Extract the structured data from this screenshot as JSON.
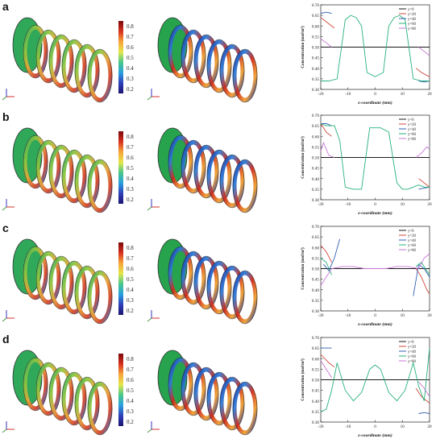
{
  "panels": [
    {
      "letter": "a",
      "colorbar_ticks": [
        "0.8",
        "0.7",
        "0.6",
        "0.5",
        "0.4",
        "0.3",
        "0.2"
      ]
    },
    {
      "letter": "b",
      "colorbar_ticks": [
        "0.8",
        "0.7",
        "0.6",
        "0.5",
        "0.4",
        "0.3",
        "0.2"
      ]
    },
    {
      "letter": "c",
      "colorbar_ticks": [
        "0.8",
        "0.7",
        "0.6",
        "0.5",
        "0.4",
        "0.3",
        "0.2"
      ]
    },
    {
      "letter": "d",
      "colorbar_ticks": [
        "0.8",
        "0.7",
        "0.6",
        "0.5",
        "0.4",
        "0.3",
        "0.2"
      ]
    }
  ],
  "colors": {
    "y0": "#1a1a1a",
    "y20": "#d0473b",
    "y40": "#2f5fb0",
    "y60": "#27b07a",
    "y80": "#c774d6"
  },
  "chart_data": [
    {
      "type": "line",
      "xlabel": "z-coordinate (mm)",
      "ylabel": "Concentration (mol/m³)",
      "xlim": [
        -20,
        20
      ],
      "ylim": [
        0.3,
        0.7
      ],
      "xticks": [
        -20,
        -10,
        0,
        10,
        20
      ],
      "yticks": [
        0.3,
        0.35,
        0.4,
        0.45,
        0.5,
        0.55,
        0.6,
        0.65,
        0.7
      ],
      "legend_position": "top-right",
      "series": [
        {
          "name": "y=0",
          "color": "#1a1a1a",
          "x": [
            -20,
            20
          ],
          "y": [
            0.5,
            0.5
          ]
        },
        {
          "name": "y=20",
          "color": "#d0473b",
          "x": [
            -20,
            -17,
            -15,
            15,
            17,
            20
          ],
          "y": [
            0.64,
            0.61,
            0.59,
            0.4,
            0.38,
            0.36
          ]
        },
        {
          "name": "y=40",
          "color": "#2f5fb0",
          "x": [
            -20,
            -18,
            -16,
            16,
            18,
            20
          ],
          "y": [
            0.66,
            0.665,
            0.66,
            0.34,
            0.335,
            0.34
          ]
        },
        {
          "name": "y=60",
          "color": "#27b07a",
          "x": [
            -20,
            -17,
            -14,
            -11,
            -9,
            -7,
            -5,
            -3,
            0,
            3,
            5,
            7,
            9,
            11,
            14,
            17,
            20
          ],
          "y": [
            0.34,
            0.34,
            0.35,
            0.63,
            0.65,
            0.64,
            0.6,
            0.38,
            0.36,
            0.38,
            0.6,
            0.64,
            0.65,
            0.63,
            0.35,
            0.34,
            0.34
          ]
        },
        {
          "name": "y=80",
          "color": "#c774d6",
          "x": [
            -20,
            -18,
            -16,
            16,
            18,
            20
          ],
          "y": [
            0.54,
            0.52,
            0.5,
            0.5,
            0.48,
            0.46
          ]
        }
      ]
    },
    {
      "type": "line",
      "xlabel": "z-coordinate (mm)",
      "ylabel": "Concentration (mol/m³)",
      "xlim": [
        -20,
        20
      ],
      "ylim": [
        0.3,
        0.7
      ],
      "xticks": [
        -20,
        -10,
        0,
        10,
        20
      ],
      "yticks": [
        0.3,
        0.35,
        0.4,
        0.45,
        0.5,
        0.55,
        0.6,
        0.65,
        0.7
      ],
      "legend_position": "top-right",
      "series": [
        {
          "name": "y=0",
          "color": "#1a1a1a",
          "x": [
            -20,
            20
          ],
          "y": [
            0.5,
            0.5
          ]
        },
        {
          "name": "y=20",
          "color": "#d0473b",
          "x": [
            -20,
            -18,
            -16,
            16,
            18,
            20
          ],
          "y": [
            0.66,
            0.62,
            0.6,
            0.4,
            0.38,
            0.36
          ]
        },
        {
          "name": "y=40",
          "color": "#2f5fb0",
          "x": [
            -20,
            -18,
            -16,
            16,
            18,
            20
          ],
          "y": [
            0.66,
            0.66,
            0.65,
            0.35,
            0.355,
            0.36
          ]
        },
        {
          "name": "y=60",
          "color": "#27b07a",
          "x": [
            -20,
            -18,
            -15,
            -13,
            -11,
            -8,
            -5,
            -2,
            2,
            5,
            8,
            10,
            12,
            14,
            16,
            18,
            20
          ],
          "y": [
            0.66,
            0.65,
            0.65,
            0.58,
            0.36,
            0.35,
            0.35,
            0.64,
            0.64,
            0.62,
            0.38,
            0.35,
            0.35,
            0.36,
            0.37,
            0.36,
            0.36
          ]
        },
        {
          "name": "y=80",
          "color": "#c774d6",
          "x": [
            -20,
            -19,
            -17,
            -15,
            15,
            17,
            19,
            20
          ],
          "y": [
            0.53,
            0.57,
            0.51,
            0.5,
            0.5,
            0.52,
            0.55,
            0.54
          ]
        }
      ]
    },
    {
      "type": "line",
      "xlabel": "z-coordinate (mm)",
      "ylabel": "Concentration (mol/m³)",
      "xlim": [
        -20,
        20
      ],
      "ylim": [
        0.3,
        0.7
      ],
      "xticks": [
        -20,
        -10,
        0,
        10,
        20
      ],
      "yticks": [
        0.3,
        0.35,
        0.4,
        0.45,
        0.5,
        0.55,
        0.6,
        0.65,
        0.7
      ],
      "legend_position": "top-right",
      "series": [
        {
          "name": "y=0",
          "color": "#1a1a1a",
          "x": [
            -20,
            20
          ],
          "y": [
            0.5,
            0.5
          ]
        },
        {
          "name": "y=20",
          "color": "#d0473b",
          "x": [
            -20,
            -18,
            -16,
            15,
            17,
            19,
            20
          ],
          "y": [
            0.61,
            0.58,
            0.53,
            0.5,
            0.46,
            0.4,
            0.38
          ]
        },
        {
          "name": "y=40",
          "color": "#2f5fb0",
          "x": [
            -19,
            -17,
            -15,
            -13,
            14,
            16,
            18,
            20
          ],
          "y": [
            0.52,
            0.49,
            0.55,
            0.64,
            0.37,
            0.52,
            0.5,
            0.46
          ]
        },
        {
          "name": "y=60",
          "color": "#27b07a",
          "x": [
            -20,
            -18,
            -16,
            15,
            17,
            19,
            20
          ],
          "y": [
            0.55,
            0.53,
            0.47,
            0.51,
            0.53,
            0.49,
            0.47
          ]
        },
        {
          "name": "y=80",
          "color": "#c774d6",
          "x": [
            -20,
            -18,
            -16,
            -12,
            -8,
            -4,
            0,
            4,
            8,
            12,
            16,
            18,
            20
          ],
          "y": [
            0.42,
            0.46,
            0.5,
            0.51,
            0.51,
            0.5,
            0.5,
            0.5,
            0.51,
            0.51,
            0.5,
            0.55,
            0.57
          ]
        }
      ]
    },
    {
      "type": "line",
      "xlabel": "z-coordinate (mm)",
      "ylabel": "Concentration (mol/m³)",
      "xlim": [
        -20,
        20
      ],
      "ylim": [
        0.3,
        0.7
      ],
      "xticks": [
        -20,
        -10,
        0,
        10,
        20
      ],
      "yticks": [
        0.3,
        0.35,
        0.4,
        0.45,
        0.5,
        0.55,
        0.6,
        0.65,
        0.7
      ],
      "legend_position": "top-right",
      "series": [
        {
          "name": "y=0",
          "color": "#1a1a1a",
          "x": [
            -20,
            20
          ],
          "y": [
            0.5,
            0.5
          ]
        },
        {
          "name": "y=20",
          "color": "#d0473b",
          "x": [
            -20,
            -17,
            -15,
            15,
            17,
            20
          ],
          "y": [
            0.62,
            0.58,
            0.56,
            0.46,
            0.42,
            0.39
          ]
        },
        {
          "name": "y=40",
          "color": "#2f5fb0",
          "x": [
            -20,
            -18,
            -16,
            16,
            18,
            20
          ],
          "y": [
            0.65,
            0.65,
            0.65,
            0.34,
            0.345,
            0.34
          ]
        },
        {
          "name": "y=60",
          "color": "#27b07a",
          "x": [
            -20,
            -18,
            -16,
            -14,
            -11,
            -8,
            -5,
            -2,
            0,
            2,
            5,
            8,
            11,
            14,
            16,
            18,
            20
          ],
          "y": [
            0.35,
            0.36,
            0.45,
            0.58,
            0.45,
            0.4,
            0.44,
            0.55,
            0.57,
            0.55,
            0.44,
            0.4,
            0.45,
            0.58,
            0.47,
            0.4,
            0.65
          ]
        },
        {
          "name": "y=80",
          "color": "#c774d6",
          "x": [
            -20,
            -18,
            -16,
            16,
            18,
            20
          ],
          "y": [
            0.59,
            0.55,
            0.51,
            0.49,
            0.46,
            0.42
          ]
        }
      ]
    }
  ]
}
